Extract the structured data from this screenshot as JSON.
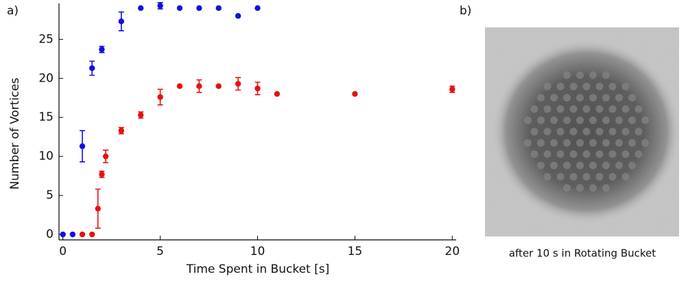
{
  "chart_data": {
    "type": "scatter",
    "panel_label": "a)",
    "x_label": "Time Spent in Bucket [s]",
    "y_label": "Number of Vortices",
    "xlim": [
      -0.2,
      20.2
    ],
    "ylim": [
      -0.7,
      29.6
    ],
    "xticks": [
      0,
      5,
      10,
      15,
      20
    ],
    "yticks": [
      0,
      5,
      10,
      15,
      20,
      25
    ],
    "grid": false,
    "series": [
      {
        "color": "#1010e0",
        "x": [
          0,
          0.5,
          1,
          1.5,
          2,
          3,
          4,
          5,
          6,
          7,
          8,
          9,
          10
        ],
        "values": [
          0,
          0,
          11.3,
          21.3,
          23.7,
          27.3,
          29,
          29.3,
          29,
          29,
          29,
          28,
          29
        ],
        "errors": [
          null,
          null,
          2,
          0.9,
          0.4,
          1.2,
          null,
          0.4,
          null,
          null,
          null,
          null,
          null
        ]
      },
      {
        "color": "#e81010",
        "x": [
          1,
          1.5,
          1.8,
          2,
          2.2,
          3,
          4,
          5,
          6,
          7,
          8,
          9,
          10,
          11,
          15,
          20
        ],
        "values": [
          0,
          0,
          3.3,
          7.7,
          10,
          13.3,
          15.3,
          17.6,
          19,
          19,
          19,
          19.3,
          18.7,
          18,
          18,
          18.6
        ],
        "errors": [
          null,
          null,
          2.5,
          0.4,
          0.8,
          0.4,
          0.4,
          1,
          null,
          0.8,
          null,
          0.8,
          0.8,
          null,
          null,
          0.4
        ]
      }
    ]
  },
  "image_panel": {
    "panel_label": "b)",
    "caption": "after 10 s in Rotating Bucket"
  }
}
